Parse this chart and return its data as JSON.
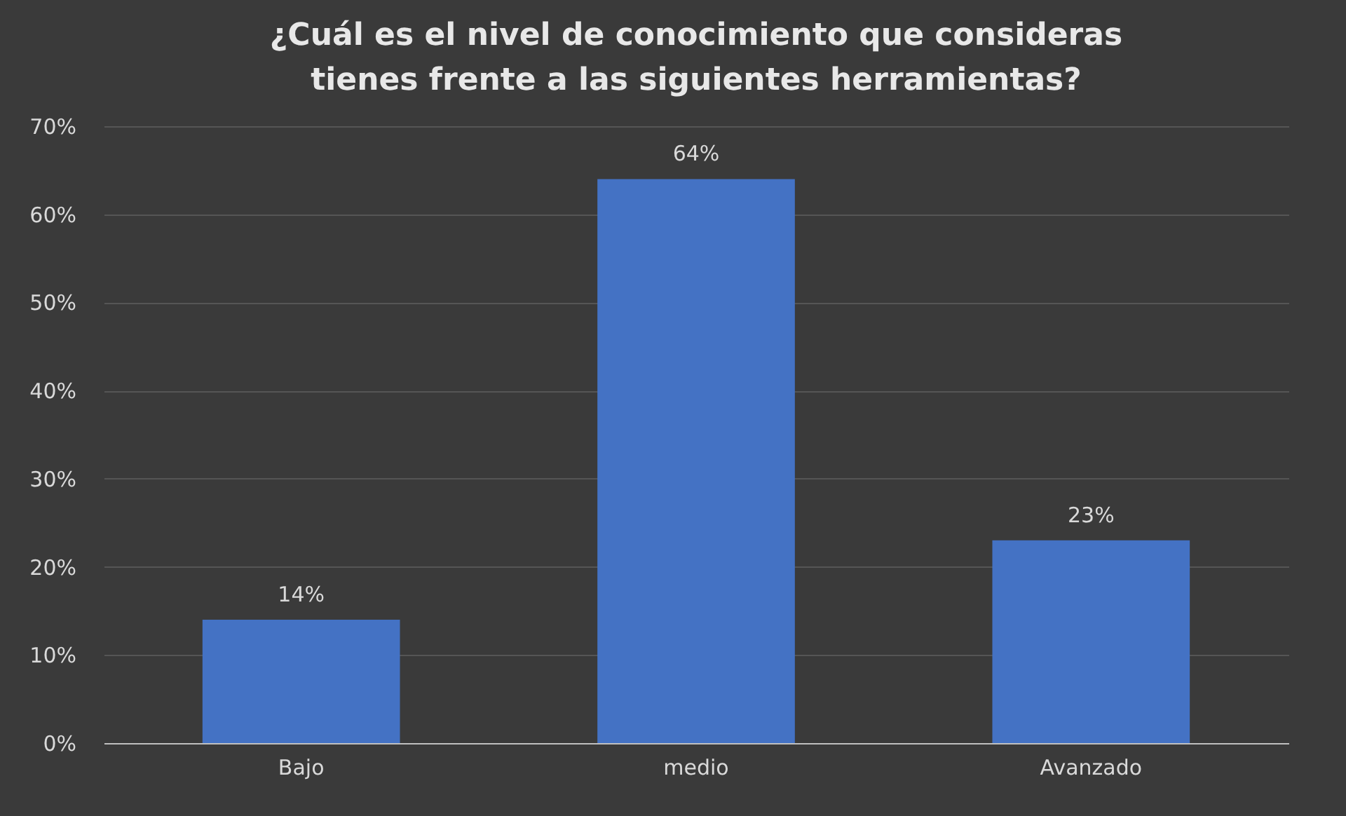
{
  "chart_data": {
    "type": "bar",
    "title": "¿Cuál es el nivel de conocimiento que consideras tienes frente a las siguientes herramientas?",
    "categories": [
      "Bajo",
      "medio",
      "Avanzado"
    ],
    "values": [
      14,
      64,
      23
    ],
    "value_labels": [
      "14%",
      "64%",
      "23%"
    ],
    "color": "#4472c4",
    "ylim": [
      0,
      70
    ],
    "yticks": [
      {
        "value": 0,
        "label": "0%"
      },
      {
        "value": 10,
        "label": "10%"
      },
      {
        "value": 20,
        "label": "20%"
      },
      {
        "value": 30,
        "label": "30%"
      },
      {
        "value": 40,
        "label": "40%"
      },
      {
        "value": 50,
        "label": "50%"
      },
      {
        "value": 60,
        "label": "60%"
      },
      {
        "value": 70,
        "label": "70%"
      }
    ],
    "grid": "y"
  }
}
